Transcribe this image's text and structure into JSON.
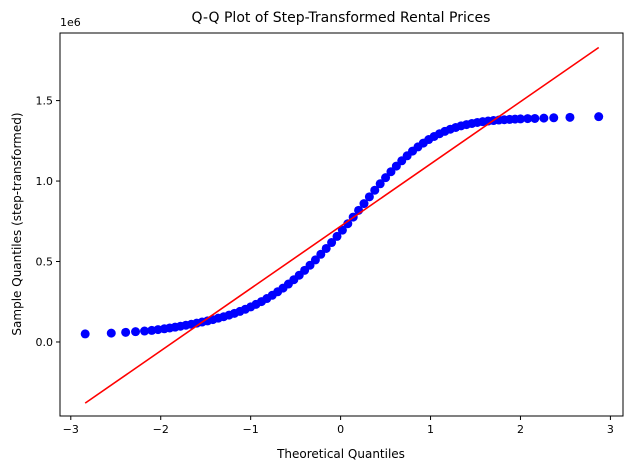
{
  "chart_data": {
    "type": "scatter",
    "title": "Q-Q Plot of Step-Transformed Rental Prices",
    "xlabel": "Theoretical Quantiles",
    "ylabel": "Sample Quantiles (step-transformed)",
    "y_offset_label": "1e6",
    "xlim": [
      -3.12,
      3.14
    ],
    "ylim": [
      -460000,
      1920000
    ],
    "x_ticks": [
      -3,
      -2,
      -1,
      0,
      1,
      2,
      3
    ],
    "x_tick_labels": [
      "−3",
      "−2",
      "−1",
      "0",
      "1",
      "2",
      "3"
    ],
    "y_ticks": [
      0,
      500000,
      1000000,
      1500000
    ],
    "y_tick_labels": [
      "0.0",
      "0.5",
      "1.0",
      "1.5"
    ],
    "grid": false,
    "legend": "none",
    "series": [
      {
        "kind": "points",
        "color": "#0000ff",
        "points": [
          [
            -2.84,
            50000
          ],
          [
            -2.55,
            55000
          ],
          [
            -2.39,
            60000
          ],
          [
            -2.28,
            64000
          ],
          [
            -2.18,
            68000
          ],
          [
            -2.1,
            72000
          ],
          [
            -2.03,
            77000
          ],
          [
            -1.96,
            82000
          ],
          [
            -1.9,
            87000
          ],
          [
            -1.84,
            92000
          ],
          [
            -1.78,
            98000
          ],
          [
            -1.72,
            104000
          ],
          [
            -1.66,
            110000
          ],
          [
            -1.6,
            117000
          ],
          [
            -1.54,
            124000
          ],
          [
            -1.48,
            131000
          ],
          [
            -1.42,
            139000
          ],
          [
            -1.36,
            148000
          ],
          [
            -1.3,
            157000
          ],
          [
            -1.24,
            167000
          ],
          [
            -1.18,
            178000
          ],
          [
            -1.12,
            190000
          ],
          [
            -1.06,
            203000
          ],
          [
            -1.0,
            218000
          ],
          [
            -0.94,
            234000
          ],
          [
            -0.88,
            251000
          ],
          [
            -0.82,
            270000
          ],
          [
            -0.76,
            290000
          ],
          [
            -0.7,
            312000
          ],
          [
            -0.64,
            335000
          ],
          [
            -0.58,
            360000
          ],
          [
            -0.52,
            387000
          ],
          [
            -0.46,
            415000
          ],
          [
            -0.4,
            445000
          ],
          [
            -0.34,
            477000
          ],
          [
            -0.28,
            510000
          ],
          [
            -0.22,
            545000
          ],
          [
            -0.16,
            581000
          ],
          [
            -0.1,
            618000
          ],
          [
            -0.04,
            656000
          ],
          [
            0.02,
            695000
          ],
          [
            0.08,
            735000
          ],
          [
            0.14,
            776000
          ],
          [
            0.2,
            818000
          ],
          [
            0.26,
            860000
          ],
          [
            0.32,
            902000
          ],
          [
            0.38,
            943000
          ],
          [
            0.44,
            983000
          ],
          [
            0.5,
            1021000
          ],
          [
            0.56,
            1058000
          ],
          [
            0.62,
            1093000
          ],
          [
            0.68,
            1126000
          ],
          [
            0.74,
            1157000
          ],
          [
            0.8,
            1186000
          ],
          [
            0.86,
            1212000
          ],
          [
            0.92,
            1236000
          ],
          [
            0.98,
            1258000
          ],
          [
            1.04,
            1277000
          ],
          [
            1.1,
            1294000
          ],
          [
            1.16,
            1309000
          ],
          [
            1.22,
            1322000
          ],
          [
            1.28,
            1333000
          ],
          [
            1.34,
            1343000
          ],
          [
            1.4,
            1351000
          ],
          [
            1.46,
            1358000
          ],
          [
            1.52,
            1364000
          ],
          [
            1.58,
            1369000
          ],
          [
            1.64,
            1373000
          ],
          [
            1.7,
            1376000
          ],
          [
            1.76,
            1379000
          ],
          [
            1.82,
            1381000
          ],
          [
            1.88,
            1383000
          ],
          [
            1.94,
            1385000
          ],
          [
            2.0,
            1386000
          ],
          [
            2.08,
            1388000
          ],
          [
            2.16,
            1389000
          ],
          [
            2.26,
            1391000
          ],
          [
            2.37,
            1393000
          ],
          [
            2.55,
            1396000
          ],
          [
            2.87,
            1400000
          ]
        ]
      },
      {
        "kind": "line",
        "color": "#ff0000",
        "points": [
          [
            -2.84,
            -380000
          ],
          [
            2.87,
            1830000
          ]
        ]
      }
    ]
  }
}
